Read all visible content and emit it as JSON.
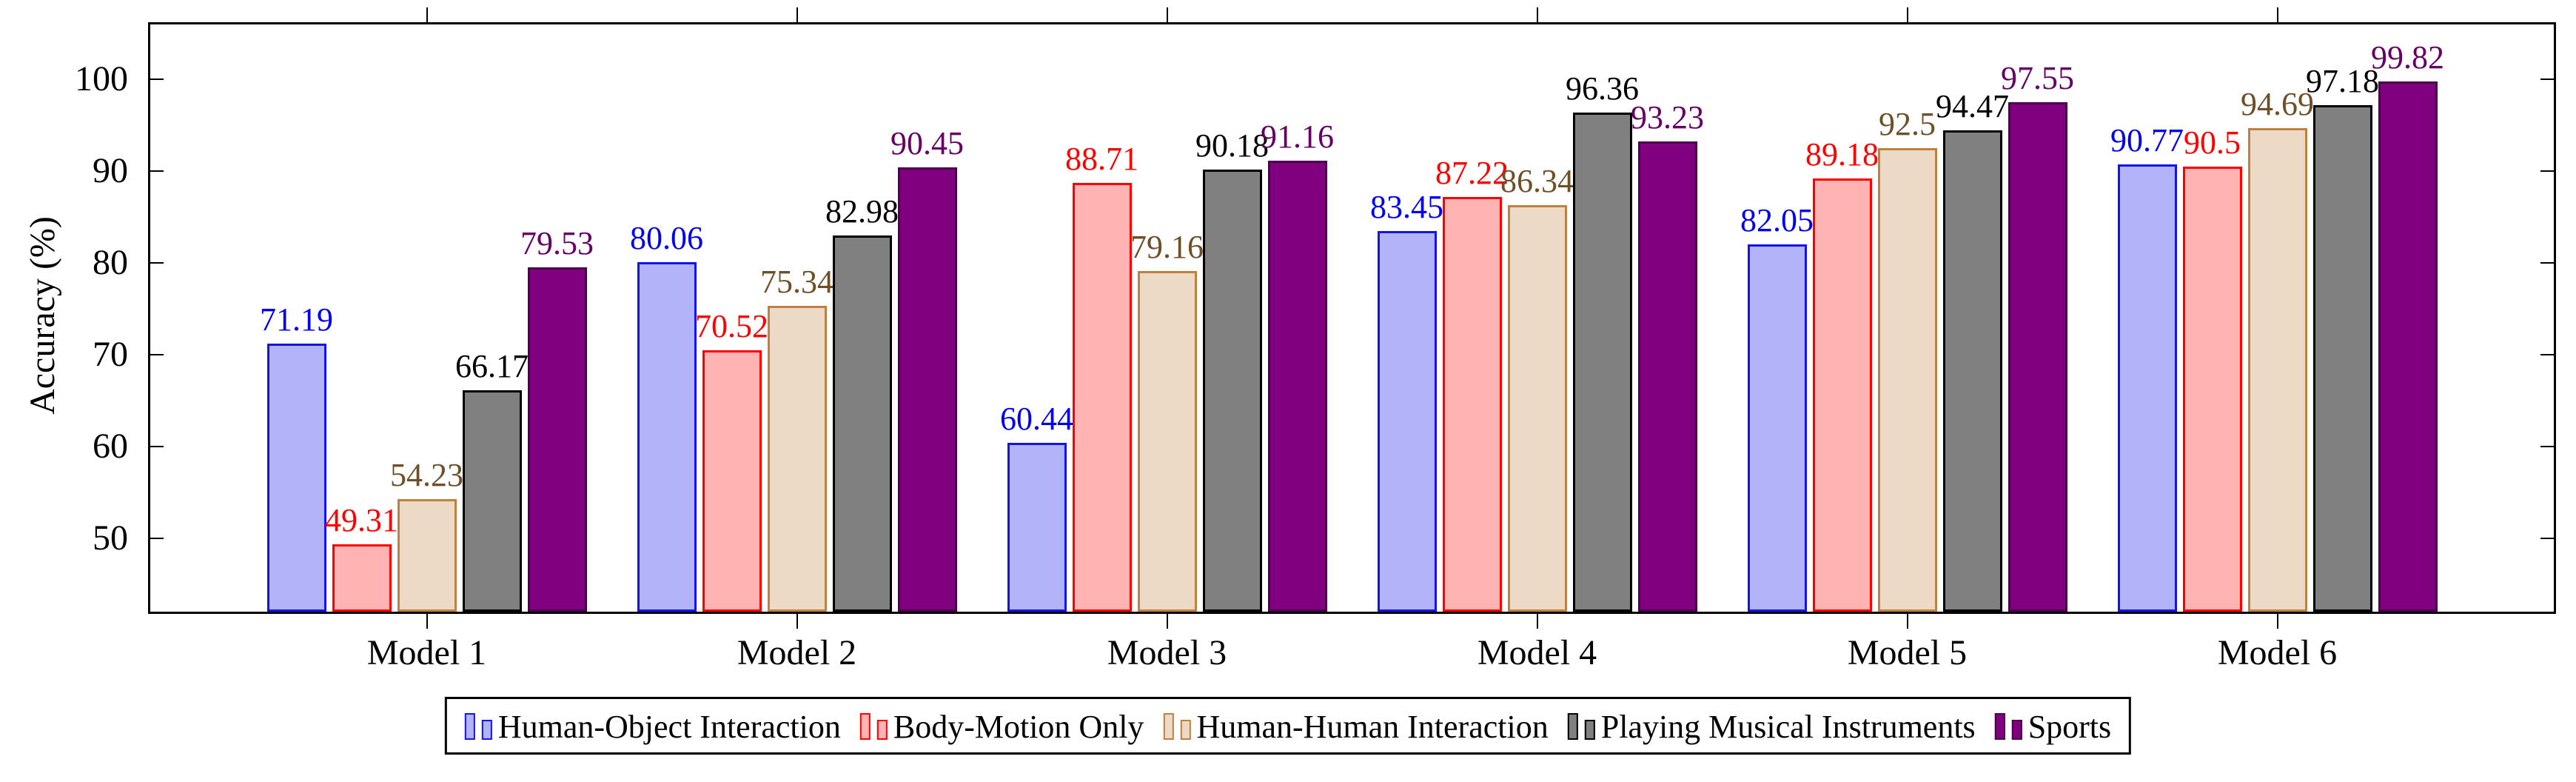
{
  "page": {
    "background": "#ffffff"
  },
  "chart_data": {
    "type": "bar",
    "title": "",
    "xlabel": "",
    "ylabel": "Accuracy (%)",
    "categories": [
      "Model 1",
      "Model 2",
      "Model 3",
      "Model 4",
      "Model 5",
      "Model 6"
    ],
    "yticks": [
      "50",
      "60",
      "70",
      "80",
      "90",
      "100"
    ],
    "ylim": [
      42,
      106
    ],
    "grid": false,
    "legend_position": "below-center-boxed",
    "value_labels_shown": true,
    "series": [
      {
        "name": "Human-Object Interaction",
        "fill": "#b3b3fa",
        "stroke": "#1414e6",
        "label_color": "#0000ee",
        "values": [
          71.19,
          80.06,
          60.44,
          83.45,
          82.05,
          90.77
        ],
        "labels": [
          "71.19",
          "80.06",
          "60.44",
          "83.45",
          "82.05",
          "90.77"
        ]
      },
      {
        "name": "Body-Motion Only",
        "fill": "#ffb3b3",
        "stroke": "#ff0000",
        "label_color": "#ff0000",
        "values": [
          49.31,
          70.52,
          88.71,
          87.22,
          89.18,
          90.5
        ],
        "labels": [
          "49.31",
          "70.52",
          "88.71",
          "87.22",
          "89.18",
          "90.5"
        ]
      },
      {
        "name": "Human-Human Interaction",
        "fill": "#ecd9c6",
        "stroke": "#bf8040",
        "label_color": "#6f4f28",
        "values": [
          54.23,
          75.34,
          79.16,
          86.34,
          92.5,
          94.69
        ],
        "labels": [
          "54.23",
          "75.34",
          "79.16",
          "86.34",
          "92.5",
          "94.69"
        ]
      },
      {
        "name": "Playing Musical Instruments",
        "fill": "#808080",
        "stroke": "#000000",
        "label_color": "#000000",
        "values": [
          66.17,
          82.98,
          90.18,
          96.36,
          94.47,
          97.18
        ],
        "labels": [
          "66.17",
          "82.98",
          "90.18",
          "96.36",
          "94.47",
          "97.18"
        ]
      },
      {
        "name": "Sports",
        "fill": "#800080",
        "stroke": "#4d004d",
        "label_color": "#660066",
        "values": [
          79.53,
          90.45,
          91.16,
          93.23,
          97.55,
          99.82
        ],
        "labels": [
          "79.53",
          "90.45",
          "91.16",
          "93.23",
          "97.55",
          "99.82"
        ]
      }
    ]
  }
}
